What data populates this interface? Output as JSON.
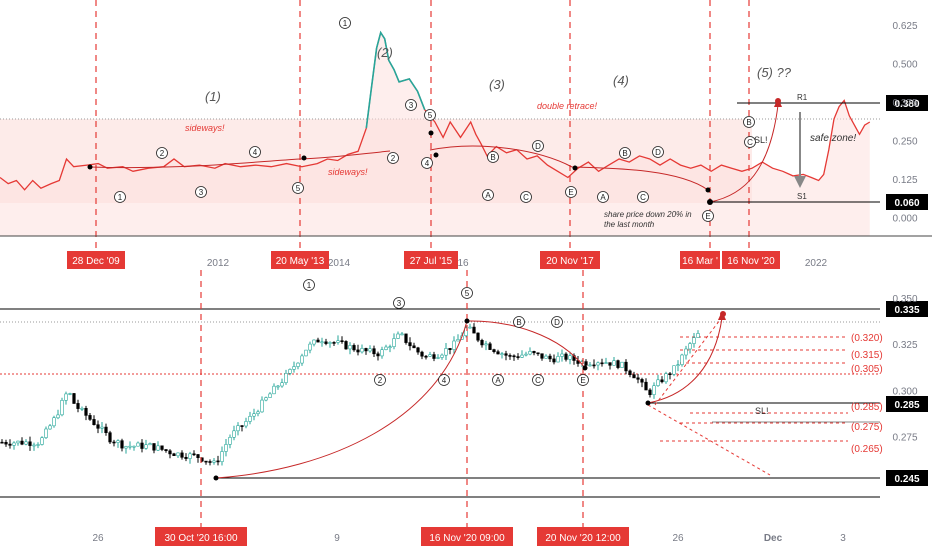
{
  "colors": {
    "up": "#26a69a",
    "down": "#000000",
    "accent": "#e53935",
    "fill": "#fde0de",
    "axis_text": "#787b86",
    "grid": "#e0e3eb"
  },
  "chart_data": [
    {
      "type": "line",
      "panel": "top",
      "ylim": [
        -0.06,
        0.68
      ],
      "yticks": [
        "0.625",
        "0.500",
        "0.375",
        "0.250",
        "0.125",
        "0.000"
      ],
      "xticks": [
        "2012",
        "2014",
        "16",
        "2022"
      ],
      "series": [
        {
          "values": [
            [
              0,
              0.13
            ],
            [
              0.8,
              0.11
            ],
            [
              1.6,
              0.12
            ],
            [
              2.4,
              0.09
            ],
            [
              3.2,
              0.12
            ],
            [
              4.0,
              0.095
            ],
            [
              5.0,
              0.11
            ],
            [
              5.8,
              0.12
            ],
            [
              6.5,
              0.19
            ],
            [
              7.2,
              0.165
            ],
            [
              8.5,
              0.17
            ],
            [
              9.6,
              0.175
            ],
            [
              10.5,
              0.16
            ],
            [
              12,
              0.165
            ],
            [
              13,
              0.15
            ],
            [
              14.5,
              0.16
            ],
            [
              16,
              0.165
            ],
            [
              17,
              0.19
            ],
            [
              18,
              0.165
            ],
            [
              19.5,
              0.17
            ],
            [
              21,
              0.16
            ],
            [
              22,
              0.175
            ],
            [
              23.5,
              0.165
            ],
            [
              25,
              0.17
            ],
            [
              26.5,
              0.165
            ],
            [
              28,
              0.175
            ],
            [
              29.5,
              0.165
            ],
            [
              31,
              0.175
            ],
            [
              32,
              0.19
            ],
            [
              33,
              0.185
            ],
            [
              34,
              0.205
            ],
            [
              35,
              0.215
            ],
            [
              35.8,
              0.29
            ],
            [
              36.3,
              0.42
            ],
            [
              36.8,
              0.55
            ],
            [
              37.2,
              0.6
            ],
            [
              37.6,
              0.58
            ],
            [
              38.0,
              0.51
            ],
            [
              38.5,
              0.48
            ],
            [
              39.0,
              0.44
            ],
            [
              40,
              0.45
            ],
            [
              40.8,
              0.41
            ],
            [
              41.5,
              0.35
            ],
            [
              42.5,
              0.31
            ],
            [
              43.3,
              0.26
            ],
            [
              44.0,
              0.31
            ],
            [
              45,
              0.26
            ],
            [
              46,
              0.31
            ],
            [
              46.5,
              0.27
            ],
            [
              47,
              0.24
            ],
            [
              47.6,
              0.2
            ],
            [
              48.5,
              0.23
            ],
            [
              49.5,
              0.21
            ],
            [
              50.5,
              0.22
            ],
            [
              51.5,
              0.19
            ],
            [
              52.5,
              0.2
            ],
            [
              53.5,
              0.17
            ],
            [
              54.5,
              0.15
            ],
            [
              55.5,
              0.13
            ],
            [
              56.5,
              0.16
            ],
            [
              57.5,
              0.18
            ],
            [
              58.5,
              0.15
            ],
            [
              59.5,
              0.17
            ],
            [
              60.5,
              0.19
            ],
            [
              61.5,
              0.18
            ],
            [
              62.5,
              0.2
            ],
            [
              63.5,
              0.19
            ],
            [
              64.5,
              0.17
            ],
            [
              65.5,
              0.19
            ],
            [
              66.5,
              0.17
            ],
            [
              67.5,
              0.16
            ],
            [
              68.5,
              0.17
            ],
            [
              69.5,
              0.15
            ],
            [
              70.5,
              0.17
            ],
            [
              71.5,
              0.16
            ],
            [
              72.5,
              0.15
            ],
            [
              73.5,
              0.16
            ],
            [
              74.5,
              0.18
            ],
            [
              75.5,
              0.16
            ],
            [
              76.5,
              0.15
            ],
            [
              77.5,
              0.135
            ],
            [
              78.5,
              0.14
            ],
            [
              79.3,
              0.13
            ],
            [
              80.0,
              0.12
            ],
            [
              80.5,
              0.14
            ],
            [
              81.0,
              0.22
            ],
            [
              81.5,
              0.32
            ],
            [
              82.0,
              0.36
            ],
            [
              82.5,
              0.38
            ],
            [
              83.0,
              0.33
            ],
            [
              83.5,
              0.3
            ],
            [
              84.0,
              0.27
            ],
            [
              84.5,
              0.3
            ],
            [
              85.0,
              0.31
            ]
          ]
        }
      ]
    },
    {
      "type": "bar",
      "panel": "bottom",
      "ylim": [
        0.23,
        0.365
      ],
      "yticks": [
        "0.350",
        "0.325",
        "0.300",
        "0.275"
      ],
      "xticks": [
        "26",
        "9",
        "26",
        "Dec",
        "3"
      ]
    }
  ],
  "top": {
    "price_tags": {
      "r1": "0.380",
      "s1": "0.060"
    },
    "labels": {
      "w1": "(1)",
      "w2": "(2)",
      "w3": "(3)",
      "w4": "(4)",
      "w5": "(5) ??",
      "sideways_a": "sideways!",
      "sideways_b": "sideways!",
      "double_retrace": "double retrace!",
      "safe_zone": "safe zone!",
      "note_line1": "share price down 20% in",
      "note_line2": "the last month",
      "r1": "R1",
      "s1": "S1",
      "sl": "SL!"
    },
    "date_tags": [
      "28 Dec '09",
      "20 May '13",
      "27 Jul '15",
      "20 Nov '17",
      "16 Mar '",
      "16 Nov '20"
    ],
    "wave_markers": [
      "1",
      "2",
      "1",
      "3",
      "2",
      "4",
      "5",
      "5",
      "1",
      "2",
      "3",
      "4",
      "5",
      "A",
      "B",
      "C",
      "D",
      "E",
      "A",
      "B",
      "C",
      "D",
      "E",
      "B",
      "C"
    ]
  },
  "bottom": {
    "price_tags": {
      "main_resistance": "0.335",
      "main_support": "0.285",
      "low": "0.245"
    },
    "target_levels": [
      "(0.320)",
      "(0.315)",
      "(0.305)",
      "(0.285)",
      "(0.275)",
      "(0.265)"
    ],
    "labels": {
      "sl": "SL!"
    },
    "date_tags": [
      "30 Oct '20  16:00",
      "16 Nov '20  09:00",
      "20 Nov '20  12:00"
    ],
    "wave_markers": [
      "1",
      "2",
      "3",
      "4",
      "5",
      "A",
      "B",
      "C",
      "D",
      "E"
    ]
  }
}
